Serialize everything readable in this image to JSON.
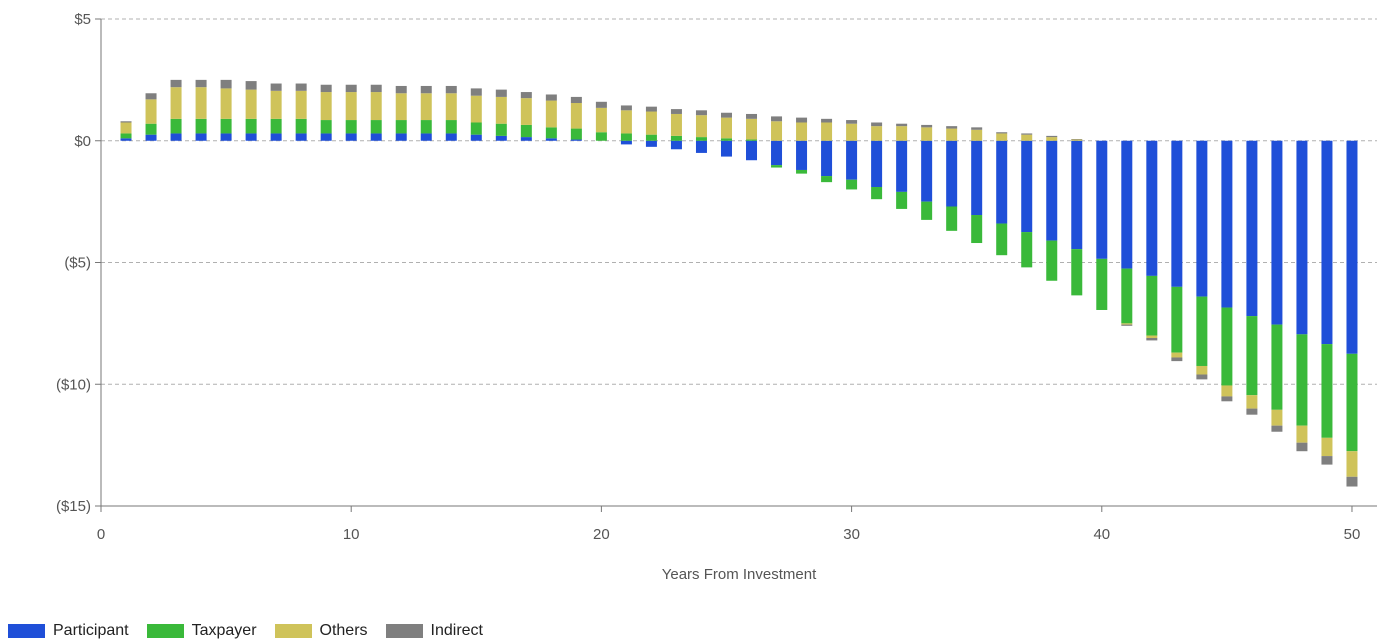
{
  "chart_data": {
    "type": "bar",
    "stacked": true,
    "xlabel": "Years From Investment",
    "ylabel": "",
    "xlim": [
      0,
      51
    ],
    "ylim": [
      -15,
      5
    ],
    "x_ticks": [
      0,
      10,
      20,
      30,
      40,
      50
    ],
    "y_ticks": [
      5,
      0,
      -5,
      -10,
      -15
    ],
    "y_tick_labels": [
      "$5",
      "$0",
      "($5)",
      "($10)",
      "($15)"
    ],
    "grid": "horizontal-dashed",
    "legend_position": "bottom-left",
    "x": [
      1,
      2,
      3,
      4,
      5,
      6,
      7,
      8,
      9,
      10,
      11,
      12,
      13,
      14,
      15,
      16,
      17,
      18,
      19,
      20,
      21,
      22,
      23,
      24,
      25,
      26,
      27,
      28,
      29,
      30,
      31,
      32,
      33,
      34,
      35,
      36,
      37,
      38,
      39,
      40,
      41,
      42,
      43,
      44,
      45,
      46,
      47,
      48,
      49,
      50
    ],
    "series": [
      {
        "name": "Participant",
        "color": "#1f4fd8",
        "values": [
          0.1,
          0.25,
          0.3,
          0.3,
          0.3,
          0.3,
          0.3,
          0.3,
          0.3,
          0.3,
          0.3,
          0.3,
          0.3,
          0.3,
          0.25,
          0.2,
          0.15,
          0.1,
          0.05,
          0.0,
          -0.15,
          -0.25,
          -0.35,
          -0.5,
          -0.65,
          -0.8,
          -1.0,
          -1.2,
          -1.45,
          -1.6,
          -1.9,
          -2.1,
          -2.5,
          -2.7,
          -3.05,
          -3.4,
          -3.75,
          -4.1,
          -4.45,
          -4.85,
          -5.25,
          -5.55,
          -6.0,
          -6.4,
          -6.85,
          -7.2,
          -7.55,
          -7.95,
          -8.35,
          -8.75
        ]
      },
      {
        "name": "Taxpayer",
        "color": "#3ab93a",
        "values": [
          0.2,
          0.45,
          0.6,
          0.6,
          0.6,
          0.6,
          0.6,
          0.6,
          0.55,
          0.55,
          0.55,
          0.55,
          0.55,
          0.55,
          0.5,
          0.5,
          0.5,
          0.45,
          0.45,
          0.35,
          0.3,
          0.25,
          0.2,
          0.15,
          0.1,
          0.05,
          -0.1,
          -0.15,
          -0.25,
          -0.4,
          -0.5,
          -0.7,
          -0.75,
          -1.0,
          -1.15,
          -1.3,
          -1.45,
          -1.65,
          -1.9,
          -2.1,
          -2.25,
          -2.45,
          -2.7,
          -2.85,
          -3.2,
          -3.25,
          -3.5,
          -3.75,
          -3.85,
          -4.0
        ]
      },
      {
        "name": "Others",
        "color": "#cfc35a",
        "values": [
          0.45,
          1.0,
          1.3,
          1.3,
          1.25,
          1.2,
          1.15,
          1.15,
          1.15,
          1.15,
          1.15,
          1.1,
          1.1,
          1.1,
          1.1,
          1.1,
          1.1,
          1.1,
          1.05,
          1.0,
          0.95,
          0.95,
          0.9,
          0.9,
          0.85,
          0.85,
          0.8,
          0.75,
          0.75,
          0.7,
          0.6,
          0.6,
          0.55,
          0.5,
          0.45,
          0.3,
          0.25,
          0.15,
          0.05,
          0.0,
          -0.05,
          -0.1,
          -0.2,
          -0.35,
          -0.45,
          -0.55,
          -0.65,
          -0.7,
          -0.75,
          -1.05
        ]
      },
      {
        "name": "Indirect",
        "color": "#7f7f7f",
        "values": [
          0.05,
          0.25,
          0.3,
          0.3,
          0.35,
          0.35,
          0.3,
          0.3,
          0.3,
          0.3,
          0.3,
          0.3,
          0.3,
          0.3,
          0.3,
          0.3,
          0.25,
          0.25,
          0.25,
          0.25,
          0.2,
          0.2,
          0.2,
          0.2,
          0.2,
          0.2,
          0.2,
          0.2,
          0.15,
          0.15,
          0.15,
          0.1,
          0.1,
          0.1,
          0.1,
          0.05,
          0.05,
          0.05,
          0.02,
          0.0,
          -0.05,
          -0.1,
          -0.15,
          -0.2,
          -0.2,
          -0.25,
          -0.25,
          -0.35,
          -0.35,
          -0.4
        ]
      }
    ]
  }
}
